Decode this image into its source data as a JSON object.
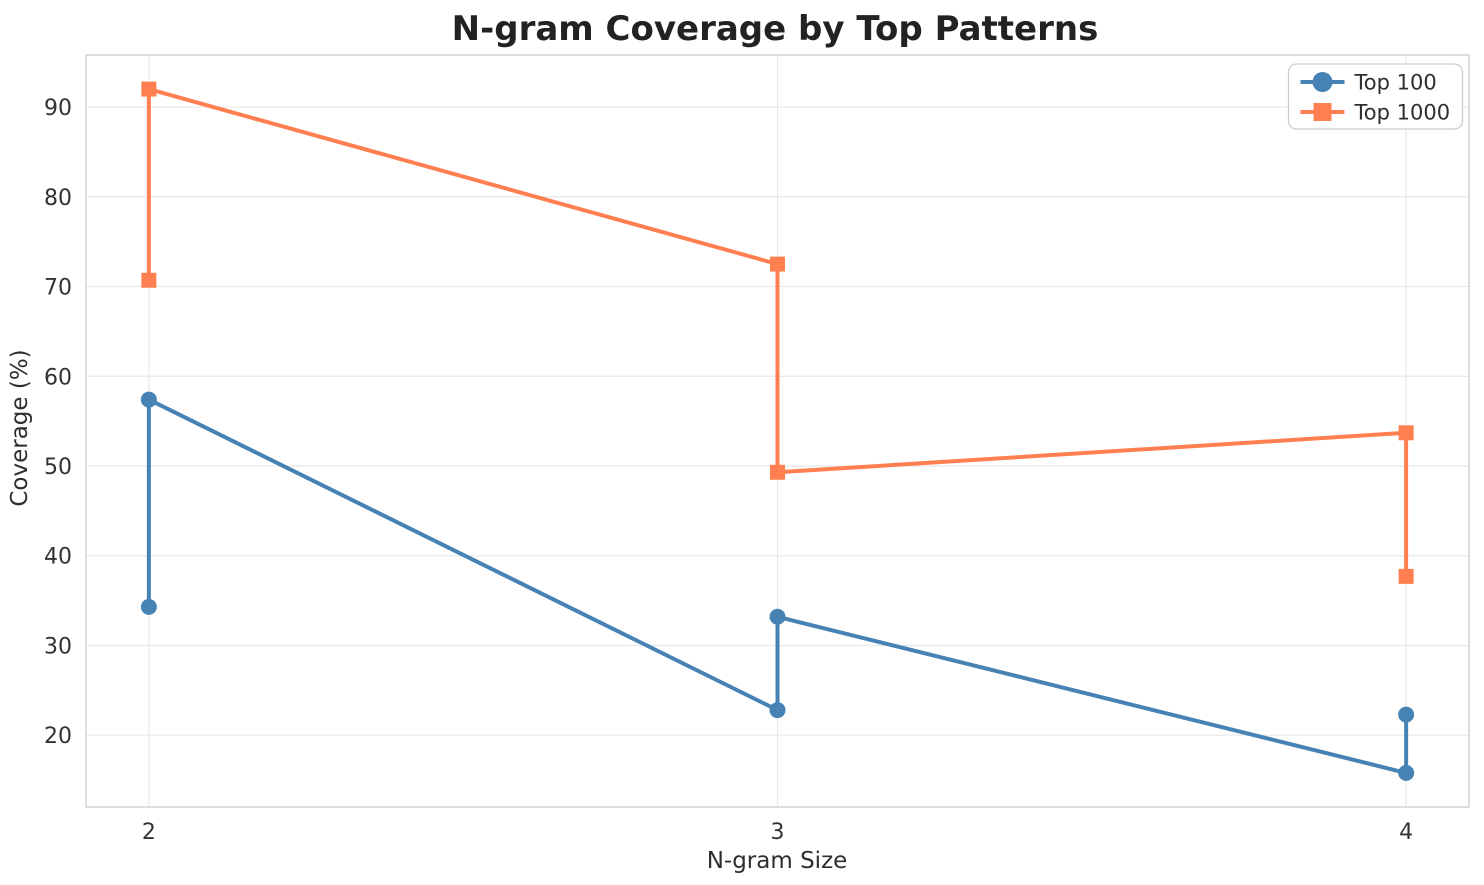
{
  "chart_data": {
    "type": "line",
    "title": "N-gram Coverage by Top Patterns",
    "xlabel": "N-gram Size",
    "ylabel": "Coverage (%)",
    "x_tick_values": [
      2,
      3,
      4
    ],
    "x_tick_labels": [
      "2",
      "3",
      "4"
    ],
    "y_tick_values": [
      20,
      30,
      40,
      50,
      60,
      70,
      80,
      90
    ],
    "y_tick_labels": [
      "20",
      "30",
      "40",
      "50",
      "60",
      "70",
      "80",
      "90"
    ],
    "xlim": [
      1.9,
      4.1
    ],
    "ylim": [
      12.0,
      95.8
    ],
    "grid": true,
    "legend_position": "upper-right",
    "series": [
      {
        "name": "Top 100",
        "color": "#4682B4",
        "marker": "circle",
        "points": [
          [
            2,
            34.3
          ],
          [
            2,
            57.4
          ],
          [
            3,
            22.8
          ],
          [
            3,
            33.2
          ],
          [
            4,
            15.8
          ],
          [
            4,
            22.3
          ]
        ]
      },
      {
        "name": "Top 1000",
        "color": "#FF7F50",
        "marker": "square",
        "points": [
          [
            2,
            70.7
          ],
          [
            2,
            92.0
          ],
          [
            3,
            72.5
          ],
          [
            3,
            49.3
          ],
          [
            4,
            53.7
          ],
          [
            4,
            37.7
          ]
        ]
      }
    ],
    "style": {
      "background": "#FFFFFF",
      "grid_color": "#E8E8E8",
      "spine_color": "#D0D0D0",
      "text_color": "#333333",
      "title_color": "#222222",
      "legend_border_color": "#CCCCCC"
    }
  }
}
